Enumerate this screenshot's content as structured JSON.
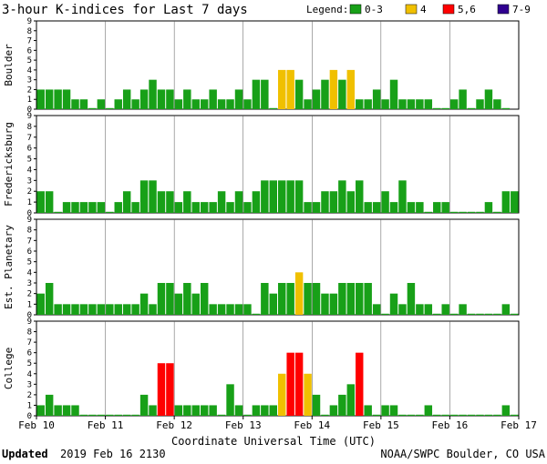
{
  "chart_data": {
    "type": "bar",
    "title": "3-hour K-indices for Last 7 days",
    "legend_label": "Legend:",
    "legend": [
      {
        "label": "0-3",
        "color": "#18a018"
      },
      {
        "label": "4",
        "color": "#f0c000"
      },
      {
        "label": "5,6",
        "color": "#ff0000"
      },
      {
        "label": "7-9",
        "color": "#300090"
      }
    ],
    "x_tick_labels": [
      "Feb 10",
      "Feb 11",
      "Feb 12",
      "Feb 13",
      "Feb 14",
      "Feb 15",
      "Feb 16",
      "Feb 17"
    ],
    "xlabel": "Coordinate Universal Time (UTC)",
    "ylim": [
      0,
      9
    ],
    "y_ticks": [
      0,
      1,
      2,
      3,
      4,
      5,
      6,
      7,
      8,
      9
    ],
    "panels": [
      {
        "name": "Boulder",
        "values": [
          2,
          2,
          2,
          2,
          1,
          1,
          0,
          1,
          0,
          1,
          2,
          1,
          2,
          3,
          2,
          2,
          1,
          2,
          1,
          1,
          2,
          1,
          1,
          2,
          1,
          3,
          3,
          0,
          4,
          4,
          3,
          1,
          2,
          3,
          4,
          3,
          4,
          1,
          1,
          2,
          1,
          3,
          1,
          1,
          1,
          1,
          0,
          0,
          1,
          2,
          0,
          1,
          2,
          1,
          0
        ]
      },
      {
        "name": "Fredericksburg",
        "values": [
          2,
          2,
          0,
          1,
          1,
          1,
          1,
          1,
          0,
          1,
          2,
          1,
          3,
          3,
          2,
          2,
          1,
          2,
          1,
          1,
          1,
          2,
          1,
          2,
          1,
          2,
          3,
          3,
          3,
          3,
          3,
          1,
          1,
          2,
          2,
          3,
          2,
          3,
          1,
          1,
          2,
          1,
          3,
          1,
          1,
          0,
          1,
          1,
          0,
          0,
          0,
          0,
          1,
          0,
          2,
          2,
          1,
          0
        ]
      },
      {
        "name": "Est. Planetary",
        "values": [
          2,
          3,
          1,
          1,
          1,
          1,
          1,
          1,
          1,
          1,
          1,
          1,
          2,
          1,
          3,
          3,
          2,
          3,
          2,
          3,
          1,
          1,
          1,
          1,
          1,
          0,
          3,
          2,
          3,
          3,
          4,
          3,
          3,
          2,
          2,
          3,
          3,
          3,
          3,
          1,
          0,
          2,
          1,
          3,
          1,
          1,
          0,
          1,
          0,
          1,
          0,
          0,
          0,
          0,
          1,
          0,
          1,
          2,
          1,
          0
        ]
      },
      {
        "name": "College",
        "values": [
          1,
          2,
          1,
          1,
          1,
          0,
          0,
          0,
          0,
          0,
          0,
          0,
          2,
          1,
          5,
          5,
          1,
          1,
          1,
          1,
          1,
          0,
          3,
          1,
          0,
          1,
          1,
          1,
          4,
          6,
          6,
          4,
          2,
          0,
          1,
          2,
          3,
          6,
          1,
          0,
          1,
          1,
          0,
          0,
          0,
          1,
          0,
          0,
          0,
          0,
          0,
          0,
          0,
          0,
          1,
          0,
          1,
          1,
          1,
          0
        ]
      }
    ]
  },
  "footer": {
    "updated_label": "Updated",
    "updated_time": "2019 Feb 16 2130",
    "source": "NOAA/SWPC Boulder, CO USA"
  }
}
